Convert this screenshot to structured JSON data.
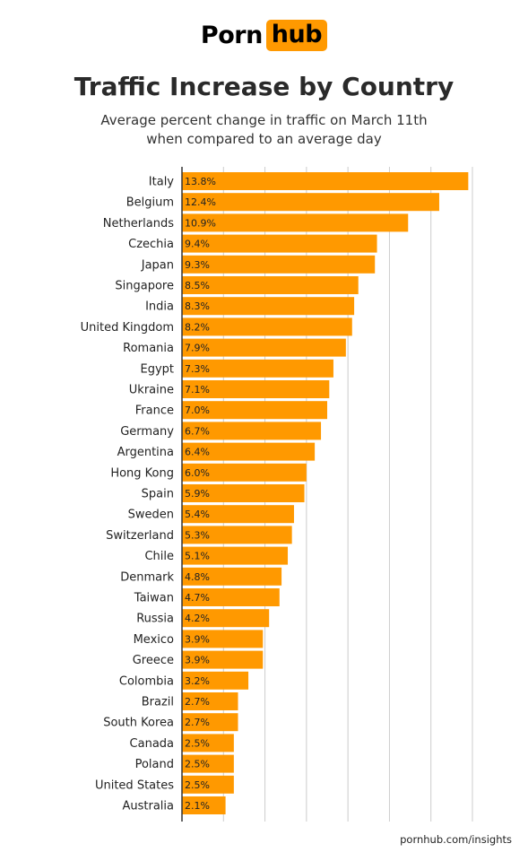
{
  "logo": {
    "part1": "Porn",
    "part2": "hub"
  },
  "header": {
    "title": "Traffic Increase by Country",
    "subtitle_line1": "Average percent change in traffic on March 11th",
    "subtitle_line2": "when compared to an average day"
  },
  "source": "pornhub.com/insights",
  "colors": {
    "bar": "#ff9900",
    "gridline": "#cccccc",
    "axis": "#333333"
  },
  "chart_data": {
    "type": "bar",
    "orientation": "horizontal",
    "title": "Traffic Increase by Country",
    "subtitle": "Average percent change in traffic on March 11th when compared to an average day",
    "categories": [
      "Italy",
      "Belgium",
      "Netherlands",
      "Czechia",
      "Japan",
      "Singapore",
      "India",
      "United Kingdom",
      "Romania",
      "Egypt",
      "Ukraine",
      "France",
      "Germany",
      "Argentina",
      "Hong Kong",
      "Spain",
      "Sweden",
      "Switzerland",
      "Chile",
      "Denmark",
      "Taiwan",
      "Russia",
      "Mexico",
      "Greece",
      "Colombia",
      "Brazil",
      "South Korea",
      "Canada",
      "Poland",
      "United States",
      "Australia"
    ],
    "values": [
      13.8,
      12.4,
      10.9,
      9.4,
      9.3,
      8.5,
      8.3,
      8.2,
      7.9,
      7.3,
      7.1,
      7.0,
      6.7,
      6.4,
      6.0,
      5.9,
      5.4,
      5.3,
      5.1,
      4.8,
      4.7,
      4.2,
      3.9,
      3.9,
      3.2,
      2.7,
      2.7,
      2.5,
      2.5,
      2.5,
      2.1
    ],
    "labels": [
      "13.8%",
      "12.4%",
      "10.9%",
      "9.4%",
      "9.3%",
      "8.5%",
      "8.3%",
      "8.2%",
      "7.9%",
      "7.3%",
      "7.1%",
      "7.0%",
      "6.7%",
      "6.4%",
      "6.0%",
      "5.9%",
      "5.4%",
      "5.3%",
      "5.1%",
      "4.8%",
      "4.7%",
      "4.2%",
      "3.9%",
      "3.9%",
      "3.2%",
      "2.7%",
      "2.7%",
      "2.5%",
      "2.5%",
      "2.5%",
      "2.1%"
    ],
    "xlim": [
      0,
      14
    ],
    "grid": true,
    "legend": "none"
  }
}
